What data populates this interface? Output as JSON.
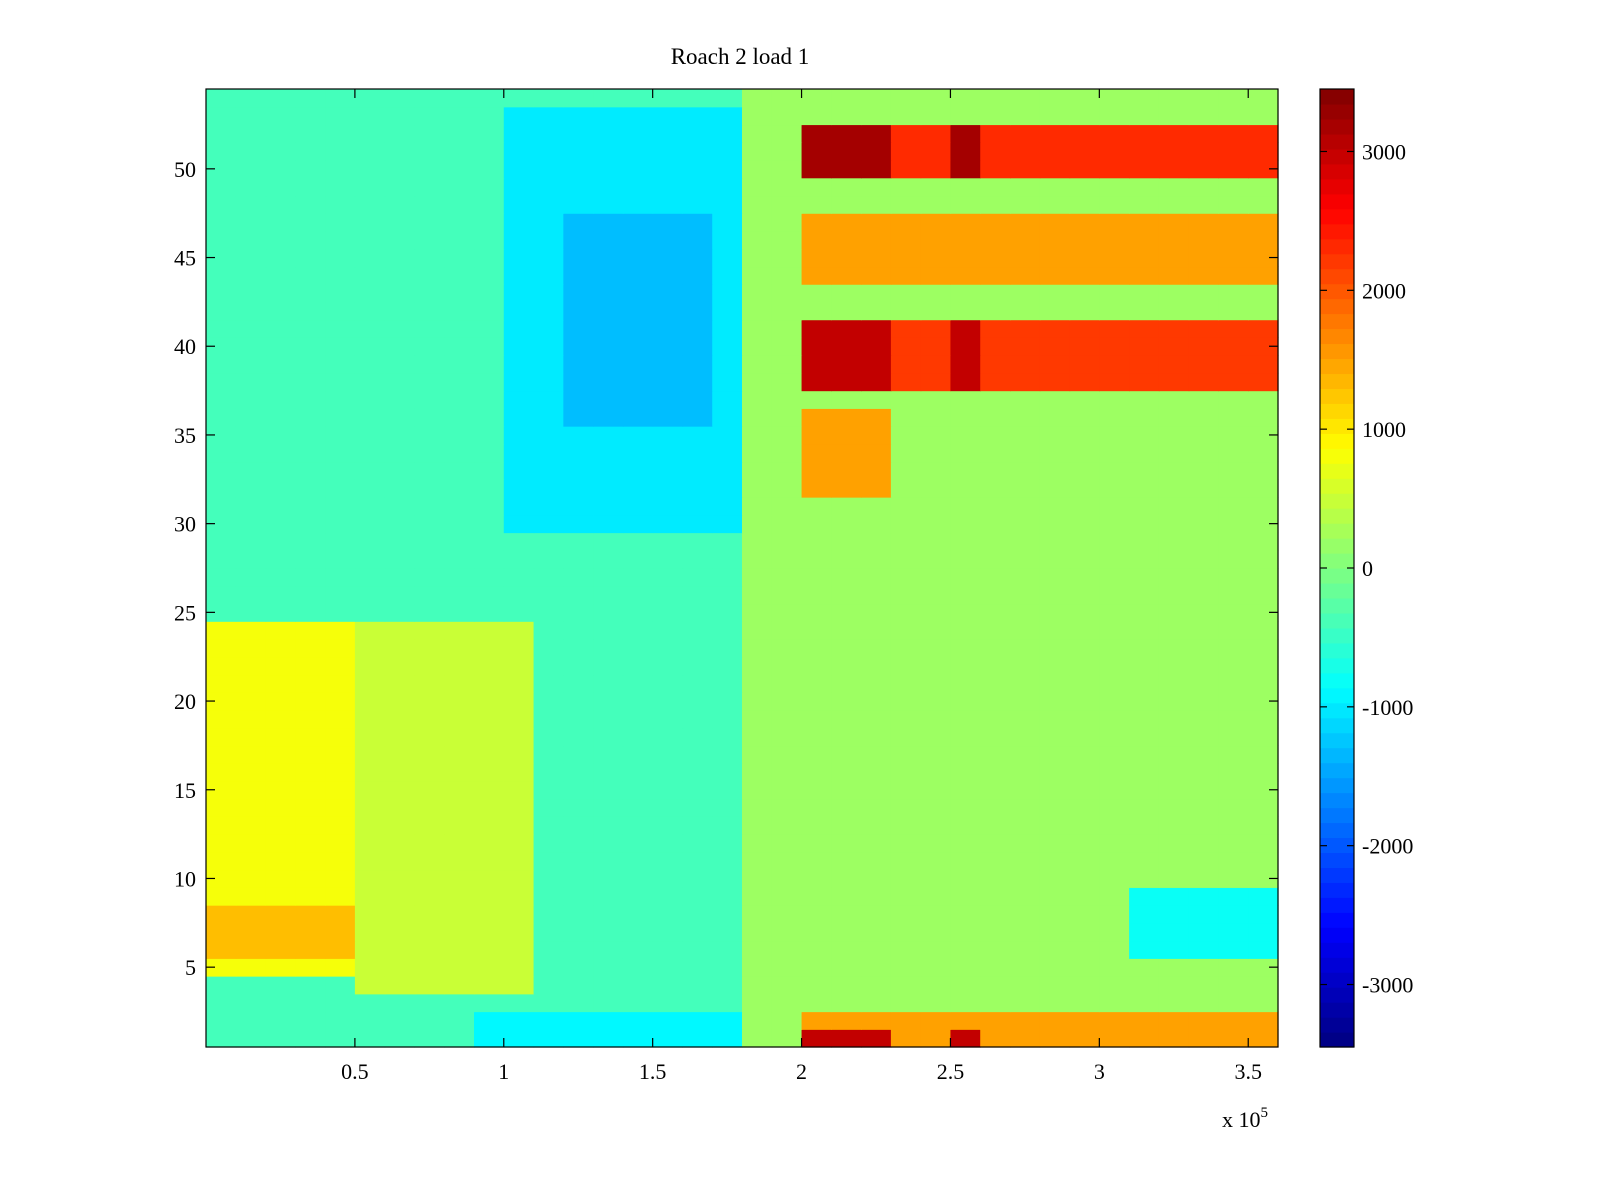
{
  "chart_data": {
    "type": "heatmap",
    "title": "Roach 2 load 1",
    "xlabel": "",
    "ylabel": "",
    "x_multiplier": "x 10",
    "x_multiplier_exponent": "5",
    "xlim": [
      0,
      3.6
    ],
    "ylim": [
      0.5,
      54.5
    ],
    "xticks": [
      {
        "value": 0.5,
        "label": "0.5"
      },
      {
        "value": 1,
        "label": "1"
      },
      {
        "value": 1.5,
        "label": "1.5"
      },
      {
        "value": 2,
        "label": "2"
      },
      {
        "value": 2.5,
        "label": "2.5"
      },
      {
        "value": 3,
        "label": "3"
      },
      {
        "value": 3.5,
        "label": "3.5"
      }
    ],
    "yticks": [
      {
        "value": 5,
        "label": "5"
      },
      {
        "value": 10,
        "label": "10"
      },
      {
        "value": 15,
        "label": "15"
      },
      {
        "value": 20,
        "label": "20"
      },
      {
        "value": 25,
        "label": "25"
      },
      {
        "value": 30,
        "label": "30"
      },
      {
        "value": 35,
        "label": "35"
      },
      {
        "value": 40,
        "label": "40"
      },
      {
        "value": 45,
        "label": "45"
      },
      {
        "value": 50,
        "label": "50"
      }
    ],
    "colormap": "jet",
    "clim": [
      -3450,
      3450
    ],
    "colorbar": {
      "position": "right",
      "ticks": [
        {
          "value": 3000,
          "label": "3000"
        },
        {
          "value": 2000,
          "label": "2000"
        },
        {
          "value": 1000,
          "label": "1000"
        },
        {
          "value": 0,
          "label": "0"
        },
        {
          "value": -1000,
          "label": "-1000"
        },
        {
          "value": -2000,
          "label": "-2000"
        },
        {
          "value": -3000,
          "label": "-3000"
        }
      ]
    },
    "rows": 54,
    "columns": 36,
    "column_x_range": [
      0,
      3.6
    ],
    "value_regions_description_free": true,
    "regions": [
      {
        "x": [
          0,
          1.8
        ],
        "y": [
          0.5,
          54.5
        ],
        "value": -400
      },
      {
        "x": [
          1.8,
          3.6
        ],
        "y": [
          0.5,
          54.5
        ],
        "value": 200
      },
      {
        "x": [
          0,
          0.5
        ],
        "y": [
          5,
          25
        ],
        "value": 800
      },
      {
        "x": [
          0,
          0.5
        ],
        "y": [
          6,
          9
        ],
        "value": 1300
      },
      {
        "x": [
          0.5,
          1.1
        ],
        "y": [
          4,
          25
        ],
        "value": 500
      },
      {
        "x": [
          1.0,
          1.8
        ],
        "y": [
          30,
          54
        ],
        "value": -1000
      },
      {
        "x": [
          1.2,
          1.7
        ],
        "y": [
          36,
          48
        ],
        "value": -1300
      },
      {
        "x": [
          0.9,
          1.8
        ],
        "y": [
          0.5,
          3
        ],
        "value": -900
      },
      {
        "x": [
          2.02,
          3.6
        ],
        "y": [
          50,
          53
        ],
        "value": 2300
      },
      {
        "x": [
          2.02,
          2.3
        ],
        "y": [
          50,
          53
        ],
        "value": 3200
      },
      {
        "x": [
          2.5,
          2.6
        ],
        "y": [
          50,
          53
        ],
        "value": 3200
      },
      {
        "x": [
          2.02,
          3.6
        ],
        "y": [
          44,
          48
        ],
        "value": 1500
      },
      {
        "x": [
          2.02,
          3.6
        ],
        "y": [
          38,
          42
        ],
        "value": 2200
      },
      {
        "x": [
          2.02,
          2.3
        ],
        "y": [
          38,
          42
        ],
        "value": 3000
      },
      {
        "x": [
          2.5,
          2.6
        ],
        "y": [
          38,
          42
        ],
        "value": 3000
      },
      {
        "x": [
          2.02,
          2.3
        ],
        "y": [
          32,
          37
        ],
        "value": 1500
      },
      {
        "x": [
          2.02,
          3.6
        ],
        "y": [
          0.5,
          3
        ],
        "value": 1500
      },
      {
        "x": [
          2.02,
          2.3
        ],
        "y": [
          0.5,
          2
        ],
        "value": 3000
      },
      {
        "x": [
          2.5,
          2.6
        ],
        "y": [
          0.5,
          2
        ],
        "value": 3000
      },
      {
        "x": [
          3.1,
          3.6
        ],
        "y": [
          6,
          10
        ],
        "value": -800
      }
    ]
  }
}
